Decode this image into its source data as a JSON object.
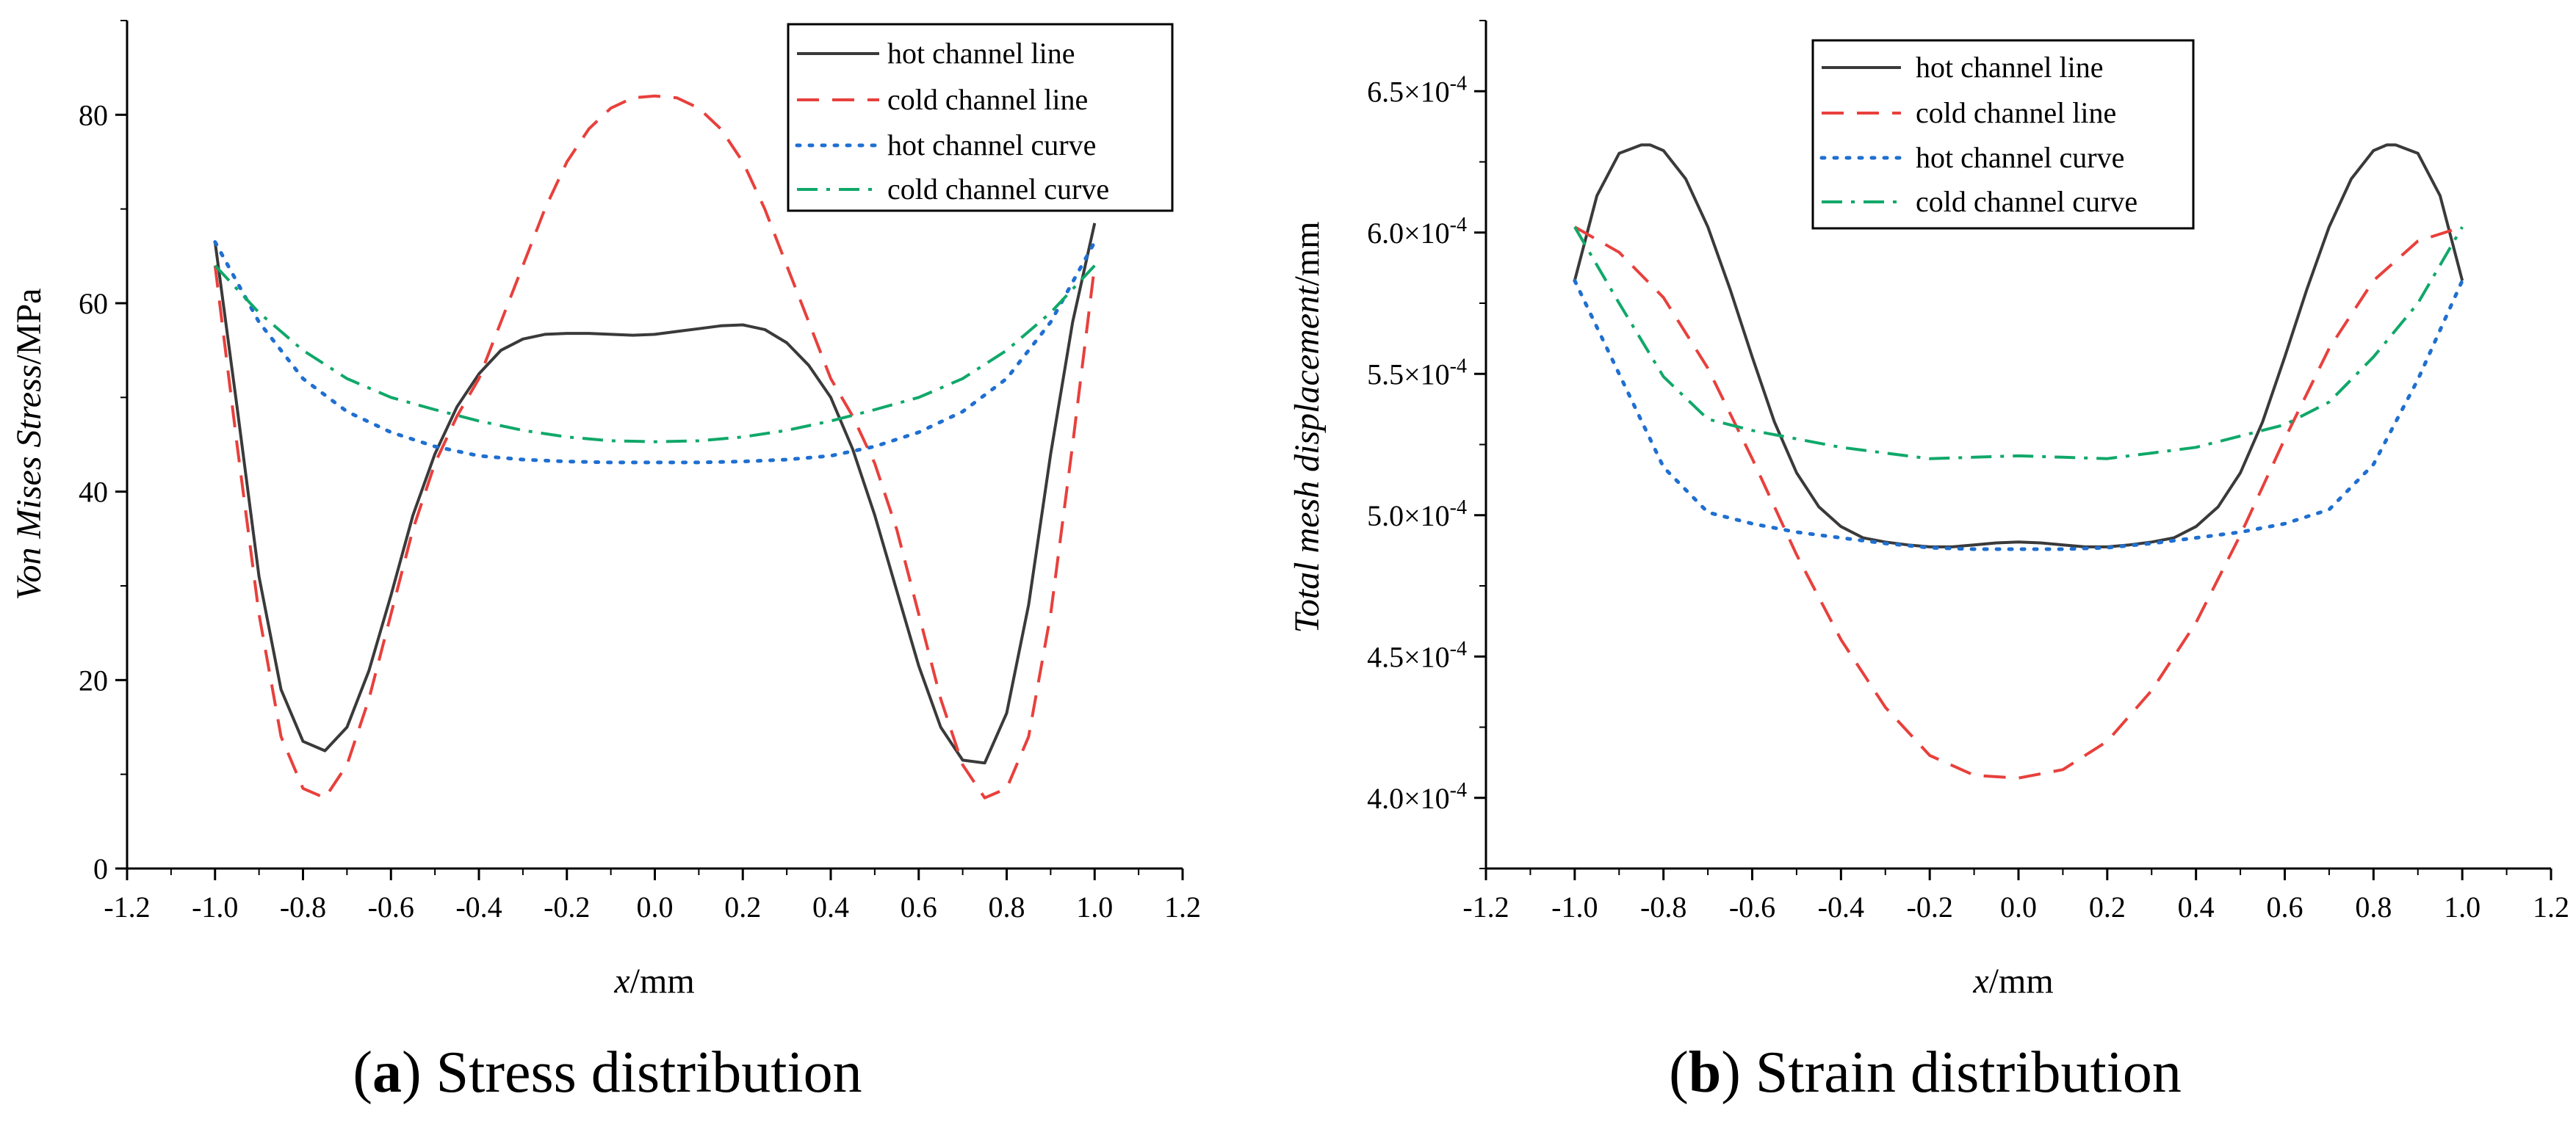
{
  "colors": {
    "hot_channel_line": "#3a3a3a",
    "cold_channel_line": "#e8403c",
    "hot_channel_curve": "#1f6fd0",
    "cold_channel_curve": "#10a86a"
  },
  "chart_data": [
    {
      "id": "a",
      "type": "line",
      "caption": {
        "letter": "a",
        "open": "(",
        "close": ")",
        "text": "Stress distribution"
      },
      "xlabel": {
        "var": "x",
        "unit": "/mm"
      },
      "ylabel": {
        "italic": "Von Mises Stress",
        "unit": "/MPa"
      },
      "xlim": [
        -1.2,
        1.2
      ],
      "ylim": [
        0,
        90
      ],
      "x_ticks": [
        -1.2,
        -1.0,
        -0.8,
        -0.6,
        -0.4,
        -0.2,
        0.0,
        0.2,
        0.4,
        0.6,
        0.8,
        1.0,
        1.2
      ],
      "x_tick_labels": [
        "-1.2",
        "-1.0",
        "-0.8",
        "-0.6",
        "-0.4",
        "-0.2",
        "0.0",
        "0.2",
        "0.4",
        "0.6",
        "0.8",
        "1.0",
        "1.2"
      ],
      "y_ticks": [
        0,
        20,
        40,
        60,
        80
      ],
      "y_tick_labels": [
        "0",
        "20",
        "40",
        "60",
        "80"
      ],
      "legend": {
        "position": "top-right"
      },
      "series": [
        {
          "name": "hot channel line",
          "style": "solid",
          "color_key": "hot_channel_line",
          "x": [
            -1.0,
            -0.95,
            -0.9,
            -0.85,
            -0.8,
            -0.75,
            -0.7,
            -0.65,
            -0.6,
            -0.55,
            -0.5,
            -0.45,
            -0.4,
            -0.35,
            -0.3,
            -0.25,
            -0.2,
            -0.15,
            -0.1,
            -0.05,
            0.0,
            0.05,
            0.1,
            0.15,
            0.2,
            0.25,
            0.3,
            0.35,
            0.4,
            0.45,
            0.5,
            0.55,
            0.6,
            0.65,
            0.7,
            0.75,
            0.8,
            0.85,
            0.9,
            0.95,
            1.0
          ],
          "y": [
            66.5,
            49,
            31,
            19,
            13.5,
            12.5,
            15,
            21,
            29,
            37.5,
            44,
            49,
            52.5,
            55,
            56.2,
            56.7,
            56.8,
            56.8,
            56.7,
            56.6,
            56.7,
            57.0,
            57.3,
            57.6,
            57.7,
            57.2,
            55.8,
            53.4,
            50.0,
            44.5,
            37.5,
            29.5,
            21.5,
            15.0,
            11.5,
            11.2,
            16.5,
            28.0,
            44.0,
            58.0,
            68.5
          ]
        },
        {
          "name": "cold channel line",
          "style": "dashed",
          "color_key": "cold_channel_line",
          "x": [
            -1.0,
            -0.95,
            -0.9,
            -0.85,
            -0.8,
            -0.75,
            -0.7,
            -0.65,
            -0.6,
            -0.55,
            -0.5,
            -0.45,
            -0.4,
            -0.35,
            -0.3,
            -0.25,
            -0.2,
            -0.15,
            -0.1,
            -0.05,
            0.0,
            0.05,
            0.1,
            0.15,
            0.2,
            0.25,
            0.3,
            0.35,
            0.4,
            0.45,
            0.5,
            0.55,
            0.6,
            0.65,
            0.7,
            0.75,
            0.8,
            0.85,
            0.9,
            0.95,
            1.0
          ],
          "y": [
            64,
            45,
            27,
            14,
            8.5,
            7.5,
            11,
            18,
            27,
            36,
            43,
            48,
            52,
            58,
            64,
            70,
            75,
            78.5,
            80.7,
            81.8,
            82.0,
            81.8,
            80.7,
            78.5,
            75.0,
            70.0,
            64.0,
            58.0,
            52.0,
            48.0,
            43.0,
            36.0,
            27.0,
            18.0,
            11.0,
            7.5,
            8.5,
            14.0,
            27.0,
            45.0,
            64.0
          ]
        },
        {
          "name": "hot channel curve",
          "style": "dotted",
          "color_key": "hot_channel_curve",
          "x": [
            -1.0,
            -0.9,
            -0.8,
            -0.7,
            -0.6,
            -0.5,
            -0.4,
            -0.3,
            -0.2,
            -0.1,
            0.0,
            0.1,
            0.2,
            0.3,
            0.4,
            0.5,
            0.6,
            0.7,
            0.8,
            0.9,
            1.0
          ],
          "y": [
            66.5,
            58,
            52,
            48.5,
            46.3,
            44.8,
            43.8,
            43.4,
            43.2,
            43.1,
            43.1,
            43.1,
            43.2,
            43.4,
            43.8,
            44.8,
            46.3,
            48.5,
            52.0,
            58.0,
            66.5
          ]
        },
        {
          "name": "cold channel curve",
          "style": "dashdot",
          "color_key": "cold_channel_curve",
          "x": [
            -1.0,
            -0.9,
            -0.8,
            -0.7,
            -0.6,
            -0.5,
            -0.4,
            -0.3,
            -0.2,
            -0.1,
            0.0,
            0.1,
            0.2,
            0.3,
            0.4,
            0.5,
            0.6,
            0.7,
            0.8,
            0.9,
            1.0
          ],
          "y": [
            64,
            59,
            55,
            52,
            50,
            48.7,
            47.5,
            46.5,
            45.8,
            45.4,
            45.3,
            45.4,
            45.8,
            46.5,
            47.5,
            48.7,
            50.0,
            52.0,
            55.0,
            59.0,
            64.0
          ]
        }
      ]
    },
    {
      "id": "b",
      "type": "line",
      "caption": {
        "letter": "b",
        "open": "(",
        "close": ")",
        "text": "Strain distribution"
      },
      "xlabel": {
        "var": "x",
        "unit": "/mm"
      },
      "ylabel": {
        "italic": "Total mesh displacement",
        "unit": "/mm"
      },
      "xlim": [
        -1.2,
        1.2
      ],
      "ylim": [
        3.75,
        6.75
      ],
      "y_scale_note": "values in units of 1e-4 mm",
      "x_ticks": [
        -1.2,
        -1.0,
        -0.8,
        -0.6,
        -0.4,
        -0.2,
        0.0,
        0.2,
        0.4,
        0.6,
        0.8,
        1.0,
        1.2
      ],
      "x_tick_labels": [
        "-1.2",
        "-1.0",
        "-0.8",
        "-0.6",
        "-0.4",
        "-0.2",
        "0.0",
        "0.2",
        "0.4",
        "0.6",
        "0.8",
        "1.0",
        "1.2"
      ],
      "y_ticks": [
        4.0,
        4.5,
        5.0,
        5.5,
        6.0,
        6.5
      ],
      "y_tick_labels": [
        {
          "mantissa": "4.0",
          "base": "×10",
          "exp": "-4"
        },
        {
          "mantissa": "4.5",
          "base": "×10",
          "exp": "-4"
        },
        {
          "mantissa": "5.0",
          "base": "×10",
          "exp": "-4"
        },
        {
          "mantissa": "5.5",
          "base": "×10",
          "exp": "-4"
        },
        {
          "mantissa": "6.0",
          "base": "×10",
          "exp": "-4"
        },
        {
          "mantissa": "6.5",
          "base": "×10",
          "exp": "-4"
        }
      ],
      "legend": {
        "position": "top-center"
      },
      "series": [
        {
          "name": "hot channel line",
          "style": "solid",
          "color_key": "hot_channel_line",
          "x": [
            -1.0,
            -0.95,
            -0.9,
            -0.85,
            -0.83,
            -0.8,
            -0.75,
            -0.7,
            -0.65,
            -0.6,
            -0.55,
            -0.5,
            -0.45,
            -0.4,
            -0.35,
            -0.3,
            -0.25,
            -0.2,
            -0.15,
            -0.1,
            -0.05,
            0.0,
            0.05,
            0.1,
            0.15,
            0.2,
            0.25,
            0.3,
            0.35,
            0.4,
            0.45,
            0.5,
            0.55,
            0.6,
            0.65,
            0.7,
            0.75,
            0.8,
            0.83,
            0.85,
            0.9,
            0.95,
            1.0
          ],
          "y": [
            5.83,
            6.13,
            6.28,
            6.31,
            6.31,
            6.29,
            6.19,
            6.02,
            5.8,
            5.56,
            5.33,
            5.15,
            5.03,
            4.96,
            4.92,
            4.905,
            4.895,
            4.888,
            4.888,
            4.895,
            4.902,
            4.905,
            4.902,
            4.895,
            4.888,
            4.888,
            4.895,
            4.905,
            4.92,
            4.96,
            5.03,
            5.15,
            5.33,
            5.56,
            5.8,
            6.02,
            6.19,
            6.29,
            6.31,
            6.31,
            6.28,
            6.13,
            5.83
          ]
        },
        {
          "name": "cold channel line",
          "style": "dashed",
          "color_key": "cold_channel_line",
          "x": [
            -1.0,
            -0.9,
            -0.8,
            -0.7,
            -0.6,
            -0.5,
            -0.4,
            -0.3,
            -0.2,
            -0.1,
            0.0,
            0.1,
            0.2,
            0.3,
            0.4,
            0.5,
            0.6,
            0.7,
            0.8,
            0.9,
            1.0
          ],
          "y": [
            6.02,
            5.93,
            5.77,
            5.52,
            5.2,
            4.86,
            4.56,
            4.32,
            4.15,
            4.08,
            4.07,
            4.1,
            4.2,
            4.38,
            4.62,
            4.93,
            5.27,
            5.59,
            5.83,
            5.97,
            6.02
          ]
        },
        {
          "name": "hot channel curve",
          "style": "dotted",
          "color_key": "hot_channel_curve",
          "x": [
            -1.0,
            -0.9,
            -0.8,
            -0.7,
            -0.6,
            -0.5,
            -0.4,
            -0.3,
            -0.2,
            -0.1,
            0.0,
            0.1,
            0.2,
            0.3,
            0.4,
            0.5,
            0.6,
            0.7,
            0.8,
            0.9,
            1.0
          ],
          "y": [
            5.83,
            5.5,
            5.17,
            5.01,
            4.97,
            4.94,
            4.92,
            4.9,
            4.885,
            4.88,
            4.88,
            4.88,
            4.885,
            4.9,
            4.92,
            4.94,
            4.97,
            5.02,
            5.18,
            5.48,
            5.83
          ]
        },
        {
          "name": "cold channel curve",
          "style": "dashdot",
          "color_key": "cold_channel_curve",
          "x": [
            -1.0,
            -0.9,
            -0.8,
            -0.7,
            -0.6,
            -0.5,
            -0.4,
            -0.3,
            -0.2,
            -0.1,
            0.0,
            0.1,
            0.2,
            0.3,
            0.4,
            0.5,
            0.6,
            0.7,
            0.8,
            0.9,
            1.0
          ],
          "y": [
            6.02,
            5.75,
            5.49,
            5.34,
            5.3,
            5.27,
            5.24,
            5.22,
            5.2,
            5.205,
            5.21,
            5.205,
            5.2,
            5.22,
            5.24,
            5.28,
            5.32,
            5.4,
            5.56,
            5.75,
            6.02
          ]
        }
      ]
    }
  ]
}
